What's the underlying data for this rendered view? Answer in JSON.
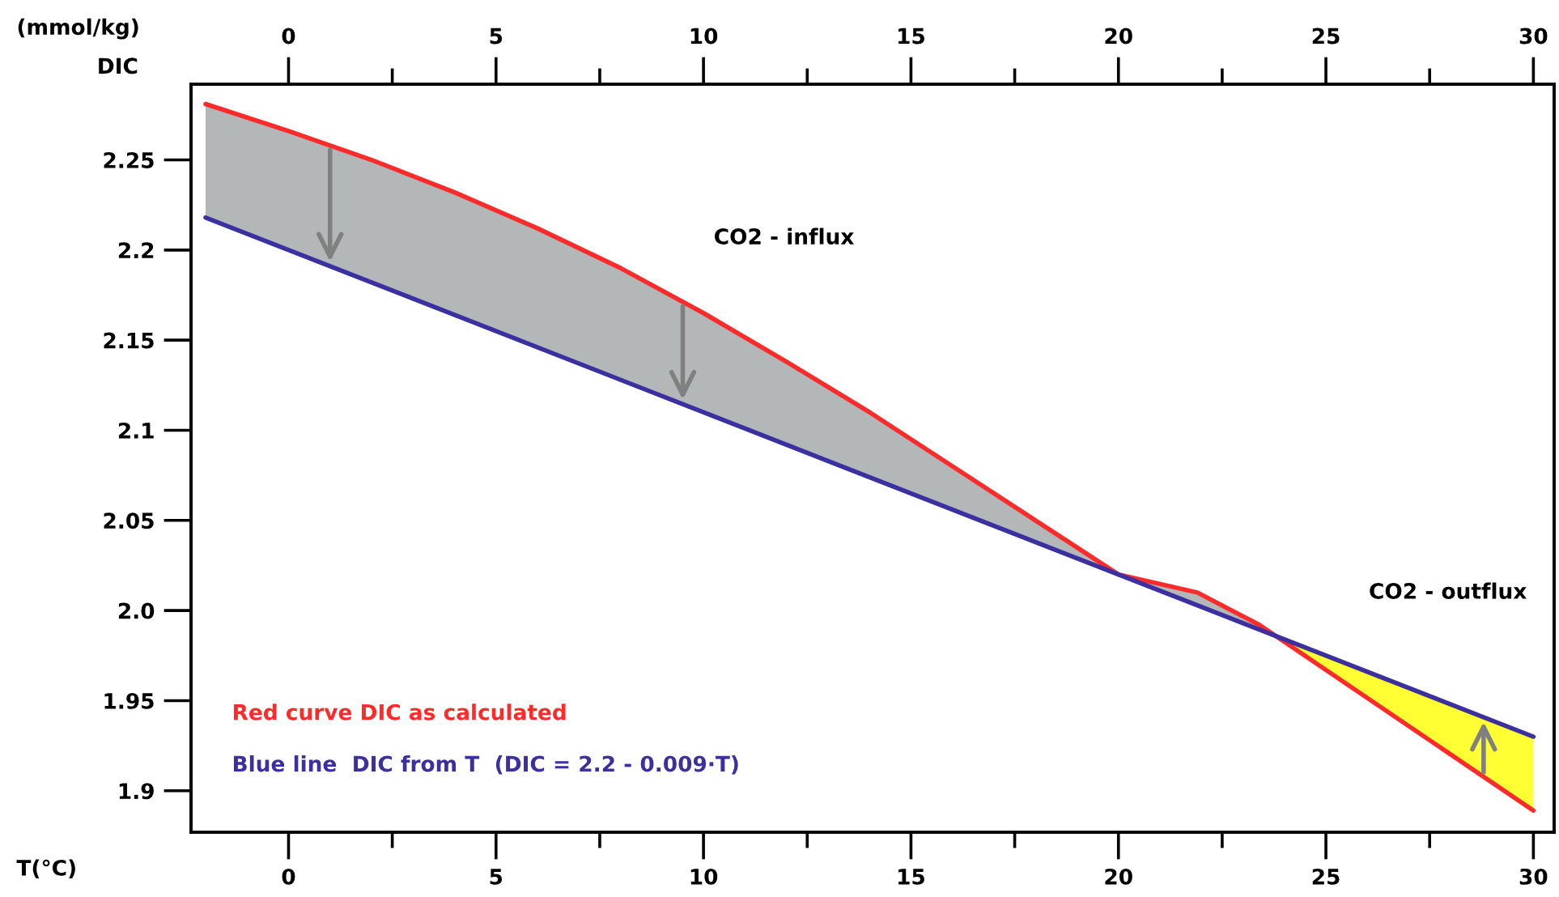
{
  "chart_data": {
    "type": "line",
    "xlabel": "T(°C)",
    "ylabel": "DIC",
    "annotations": [
      "(mmol/kg)",
      "CO2 - influx",
      "CO2 - outflux"
    ],
    "series": [
      {
        "name": "Red curve DIC as calculated",
        "color": "#ff2a2a",
        "x": [
          -2,
          0,
          2,
          4,
          6,
          8,
          10,
          12,
          14,
          16,
          18,
          20,
          21.9,
          23.4,
          30
        ],
        "values": [
          2.281,
          2.266,
          2.25,
          2.232,
          2.212,
          2.19,
          2.165,
          2.138,
          2.11,
          2.08,
          2.05,
          2.02,
          2.01,
          1.992,
          1.889
        ]
      },
      {
        "name": "Blue line  DIC from T  (DIC = 2.2 - 0.009·T)",
        "color": "#3c2fa0",
        "x": [
          -2,
          30
        ],
        "values": [
          2.218,
          1.93
        ]
      }
    ],
    "legend": "bottom left",
    "xlim": [
      -2.35,
      30.5
    ],
    "xticks": [
      0,
      {
        "value": 2.5,
        "label": null
      },
      5,
      {
        "value": 7.5,
        "label": null
      },
      10,
      {
        "value": 12.5,
        "label": null
      },
      15,
      {
        "value": 17.5,
        "label": null
      },
      20,
      {
        "value": 22.5,
        "label": null
      },
      25,
      {
        "value": 27.5,
        "label": null
      },
      30
    ],
    "x2lim": [
      -2.35,
      30.5
    ],
    "x2ticks": [
      0,
      {
        "value": 2.5,
        "label": null
      },
      5,
      {
        "value": 7.5,
        "label": null
      },
      10,
      {
        "value": 12.5,
        "label": null
      },
      15,
      {
        "value": 17.5,
        "label": null
      },
      20,
      {
        "value": 22.5,
        "label": null
      },
      25,
      {
        "value": 27.5,
        "label": null
      },
      30
    ],
    "ylim": [
      1.877,
      2.292
    ],
    "yticks": [
      1.9,
      1.95,
      {
        "value": 2.0,
        "label": "2.0"
      },
      2.05,
      2.1,
      2.15,
      2.2,
      2.25
    ],
    "grid": false
  }
}
